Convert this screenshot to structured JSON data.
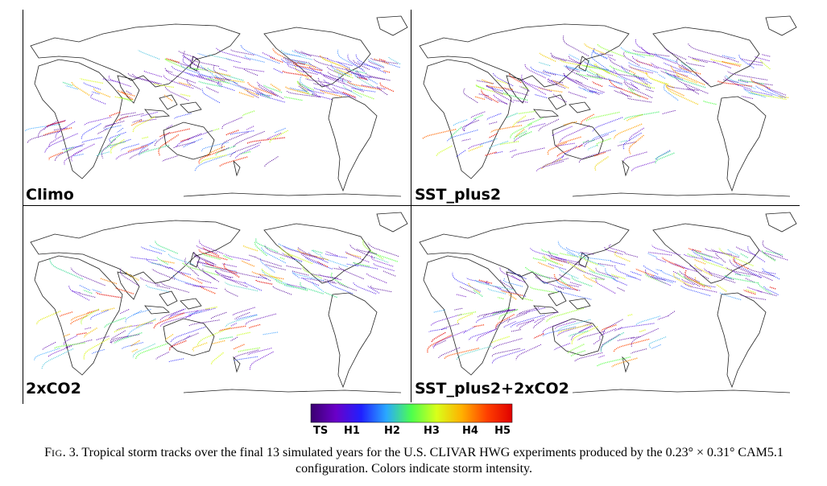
{
  "panels": [
    {
      "label": "Climo",
      "seed": 11,
      "density": 1.0
    },
    {
      "label": "SST_plus2",
      "seed": 23,
      "density": 0.95
    },
    {
      "label": "2xCO2",
      "seed": 37,
      "density": 0.85
    },
    {
      "label": "SST_plus2+2xCO2",
      "seed": 53,
      "density": 0.9
    }
  ],
  "colorbar": {
    "ticks": [
      "TS",
      "H1",
      "H2",
      "H3",
      "H4",
      "H5"
    ],
    "colors": [
      "#3a0070",
      "#6a00c8",
      "#2020ff",
      "#2aa8ff",
      "#4dff4d",
      "#d9ff1a",
      "#ffb000",
      "#ff4000",
      "#e00000"
    ]
  },
  "caption": {
    "fig_prefix": "F",
    "fig_sc": "IG",
    "fig_num": ". 3.",
    "text": " Tropical storm tracks over the final 13 simulated years for the U.S. CLIVAR HWG experiments produced by the 0.23° × 0.31° CAM5.1 configuration. Colors indicate storm intensity."
  }
}
